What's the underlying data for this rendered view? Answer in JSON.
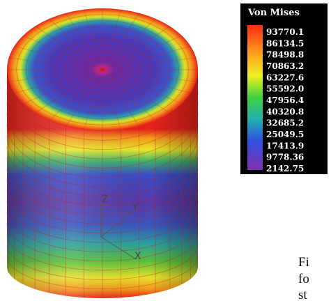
{
  "legend": {
    "title": "Von Mises",
    "labels": [
      "93770.1",
      "86134.5",
      "78498.8",
      "70863.2",
      "63227.6",
      "55592.0",
      "47956.4",
      "40320.8",
      "32685.2",
      "25049.5",
      "17413.9",
      "9778.36",
      "2142.75"
    ]
  },
  "axes": {
    "z": "Z",
    "y": "Y",
    "x": "X"
  },
  "text_fragments": [
    "Fi",
    "fo",
    "st"
  ]
}
